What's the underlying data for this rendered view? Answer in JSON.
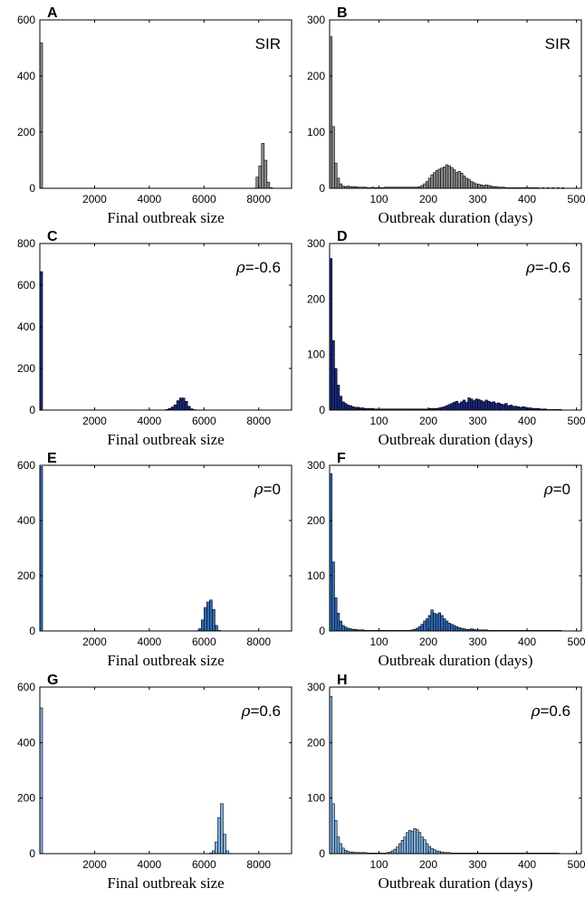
{
  "chart_data": [
    {
      "panel": "A",
      "type": "bar",
      "xlabel": "Final outbreak size",
      "ylabel": "",
      "annotation": "SIR",
      "color": "#8c8c8c",
      "xlim": [
        0,
        9200
      ],
      "ylim": [
        0,
        600
      ],
      "xticks": [
        2000,
        4000,
        6000,
        8000
      ],
      "yticks": [
        0,
        200,
        400,
        600
      ],
      "bin_width": 100,
      "bin_start": 0,
      "series": [
        {
          "values": [
            518,
            0,
            0,
            0,
            0,
            0,
            0,
            0,
            0,
            0,
            0,
            0,
            0,
            0,
            0,
            0,
            0,
            0,
            0,
            0,
            0,
            0,
            0,
            0,
            0,
            0,
            0,
            0,
            0,
            0,
            0,
            0,
            0,
            0,
            0,
            0,
            0,
            0,
            0,
            0,
            0,
            0,
            0,
            0,
            0,
            0,
            0,
            0,
            0,
            0,
            0,
            0,
            0,
            0,
            0,
            0,
            0,
            0,
            0,
            0,
            0,
            0,
            0,
            0,
            0,
            0,
            0,
            0,
            0,
            0,
            0,
            0,
            0,
            0,
            0,
            0,
            0,
            0,
            1,
            40,
            80,
            160,
            100,
            22,
            2
          ]
        }
      ]
    },
    {
      "panel": "B",
      "type": "bar",
      "xlabel": "Outbreak duration (days)",
      "ylabel": "",
      "annotation": "SIR",
      "color": "#8c8c8c",
      "xlim": [
        0,
        510
      ],
      "ylim": [
        0,
        300
      ],
      "xticks": [
        100,
        200,
        300,
        400,
        500
      ],
      "yticks": [
        0,
        100,
        200,
        300
      ],
      "bin_width": 5,
      "bin_start": 0,
      "series": [
        {
          "values": [
            270,
            110,
            45,
            18,
            8,
            4,
            3,
            4,
            3,
            3,
            3,
            2,
            2,
            2,
            2,
            1,
            1,
            2,
            1,
            1,
            1,
            1,
            2,
            2,
            2,
            2,
            2,
            2,
            2,
            2,
            2,
            2,
            2,
            2,
            2,
            2,
            3,
            5,
            8,
            12,
            18,
            24,
            28,
            32,
            34,
            36,
            38,
            42,
            40,
            37,
            33,
            28,
            30,
            27,
            22,
            18,
            16,
            12,
            10,
            8,
            7,
            6,
            5,
            6,
            5,
            4,
            3,
            3,
            2,
            2,
            2,
            1,
            1,
            1,
            1,
            1,
            1,
            1,
            1,
            1,
            1,
            1,
            1,
            1,
            1,
            0,
            1,
            0,
            1,
            0,
            1,
            0,
            1,
            0,
            1,
            0
          ]
        }
      ]
    },
    {
      "panel": "C",
      "type": "bar",
      "xlabel": "Final outbreak size",
      "ylabel": "",
      "annotation": "ρ=-0.6",
      "color": "#1b2a80",
      "xlim": [
        0,
        9200
      ],
      "ylim": [
        0,
        800
      ],
      "xticks": [
        2000,
        4000,
        6000,
        8000
      ],
      "yticks": [
        0,
        200,
        400,
        600,
        800
      ],
      "bin_width": 100,
      "bin_start": 0,
      "series": [
        {
          "values": [
            665,
            0,
            0,
            0,
            0,
            0,
            0,
            0,
            0,
            0,
            0,
            0,
            0,
            0,
            0,
            0,
            0,
            0,
            0,
            0,
            0,
            0,
            0,
            0,
            0,
            0,
            0,
            0,
            0,
            0,
            0,
            0,
            0,
            0,
            0,
            0,
            0,
            0,
            0,
            0,
            0,
            0,
            0,
            0,
            0,
            0,
            3,
            8,
            15,
            25,
            45,
            58,
            58,
            42,
            18,
            6,
            2
          ]
        }
      ]
    },
    {
      "panel": "D",
      "type": "bar",
      "xlabel": "Outbreak duration (days)",
      "ylabel": "",
      "annotation": "ρ=-0.6",
      "color": "#1b2a80",
      "xlim": [
        0,
        510
      ],
      "ylim": [
        0,
        300
      ],
      "xticks": [
        100,
        200,
        300,
        400,
        500
      ],
      "yticks": [
        0,
        100,
        200,
        300
      ],
      "bin_width": 5,
      "bin_start": 0,
      "series": [
        {
          "values": [
            273,
            125,
            75,
            45,
            25,
            15,
            12,
            9,
            8,
            6,
            5,
            5,
            4,
            4,
            3,
            3,
            3,
            3,
            2,
            2,
            2,
            2,
            2,
            2,
            2,
            2,
            2,
            2,
            2,
            2,
            2,
            2,
            2,
            2,
            2,
            2,
            2,
            2,
            2,
            2,
            3,
            3,
            3,
            3,
            4,
            5,
            6,
            8,
            10,
            12,
            14,
            16,
            12,
            15,
            18,
            14,
            22,
            20,
            17,
            20,
            19,
            17,
            15,
            18,
            16,
            14,
            15,
            12,
            13,
            11,
            10,
            12,
            8,
            9,
            7,
            7,
            6,
            5,
            6,
            5,
            4,
            4,
            3,
            3,
            3,
            2,
            2,
            2,
            1,
            1,
            1,
            1,
            1,
            1,
            0,
            0
          ]
        }
      ]
    },
    {
      "panel": "E",
      "type": "bar",
      "xlabel": "Final outbreak size",
      "ylabel": "",
      "annotation": "ρ=0",
      "color": "#2f6bb8",
      "xlim": [
        0,
        9200
      ],
      "ylim": [
        0,
        600
      ],
      "xticks": [
        2000,
        4000,
        6000,
        8000
      ],
      "yticks": [
        0,
        200,
        400,
        600
      ],
      "bin_width": 100,
      "bin_start": 0,
      "series": [
        {
          "values": [
            595,
            0,
            0,
            0,
            0,
            0,
            0,
            0,
            0,
            0,
            0,
            0,
            0,
            0,
            0,
            0,
            0,
            0,
            0,
            0,
            0,
            0,
            0,
            0,
            0,
            0,
            0,
            0,
            0,
            0,
            0,
            0,
            0,
            0,
            0,
            0,
            0,
            0,
            0,
            0,
            0,
            0,
            0,
            0,
            0,
            0,
            0,
            0,
            0,
            0,
            0,
            0,
            0,
            0,
            0,
            0,
            0,
            1,
            8,
            40,
            85,
            105,
            112,
            78,
            20,
            2
          ]
        }
      ]
    },
    {
      "panel": "F",
      "type": "bar",
      "xlabel": "Outbreak duration (days)",
      "ylabel": "",
      "annotation": "ρ=0",
      "color": "#2f6bb8",
      "xlim": [
        0,
        510
      ],
      "ylim": [
        0,
        300
      ],
      "xticks": [
        100,
        200,
        300,
        400,
        500
      ],
      "yticks": [
        0,
        100,
        200,
        300
      ],
      "bin_width": 5,
      "bin_start": 0,
      "series": [
        {
          "values": [
            285,
            125,
            60,
            32,
            18,
            10,
            7,
            5,
            4,
            3,
            3,
            2,
            2,
            2,
            1,
            1,
            1,
            1,
            1,
            1,
            1,
            1,
            1,
            1,
            1,
            1,
            1,
            1,
            1,
            1,
            1,
            1,
            1,
            2,
            3,
            5,
            8,
            12,
            18,
            22,
            28,
            38,
            32,
            30,
            33,
            28,
            22,
            18,
            14,
            12,
            10,
            8,
            6,
            5,
            4,
            3,
            3,
            4,
            3,
            2,
            2,
            2,
            2,
            2,
            1,
            1,
            1,
            1,
            1,
            1,
            1,
            1,
            1,
            1,
            1,
            1,
            1,
            1,
            1,
            1,
            1,
            1,
            1,
            1,
            1,
            1,
            1,
            1,
            1,
            1,
            1,
            1,
            1,
            1,
            0,
            0
          ]
        }
      ]
    },
    {
      "panel": "G",
      "type": "bar",
      "xlabel": "Final outbreak size",
      "ylabel": "",
      "annotation": "ρ=0.6",
      "color": "#7fb2e3",
      "xlim": [
        0,
        9200
      ],
      "ylim": [
        0,
        600
      ],
      "xticks": [
        2000,
        4000,
        6000,
        8000
      ],
      "yticks": [
        0,
        200,
        400,
        600
      ],
      "bin_width": 100,
      "bin_start": 0,
      "series": [
        {
          "values": [
            525,
            0,
            0,
            0,
            0,
            0,
            0,
            0,
            0,
            0,
            0,
            0,
            0,
            0,
            0,
            0,
            0,
            0,
            0,
            0,
            0,
            0,
            0,
            0,
            0,
            0,
            0,
            0,
            0,
            0,
            0,
            0,
            0,
            0,
            0,
            0,
            0,
            0,
            0,
            0,
            0,
            0,
            0,
            0,
            0,
            0,
            0,
            0,
            0,
            0,
            0,
            0,
            0,
            0,
            0,
            0,
            0,
            0,
            0,
            0,
            0,
            0,
            2,
            10,
            42,
            130,
            180,
            70,
            10,
            1
          ]
        }
      ]
    },
    {
      "panel": "H",
      "type": "bar",
      "xlabel": "Outbreak duration (days)",
      "ylabel": "",
      "annotation": "ρ=0.6",
      "color": "#7fb2e3",
      "xlim": [
        0,
        510
      ],
      "ylim": [
        0,
        300
      ],
      "xticks": [
        100,
        200,
        300,
        400,
        500
      ],
      "yticks": [
        0,
        100,
        200,
        300
      ],
      "bin_width": 5,
      "bin_start": 0,
      "series": [
        {
          "values": [
            283,
            90,
            60,
            30,
            18,
            10,
            6,
            4,
            3,
            3,
            2,
            2,
            2,
            2,
            2,
            1,
            1,
            1,
            1,
            1,
            1,
            1,
            1,
            2,
            3,
            5,
            8,
            12,
            18,
            24,
            30,
            38,
            42,
            40,
            45,
            43,
            38,
            30,
            25,
            18,
            13,
            9,
            7,
            5,
            4,
            3,
            2,
            2,
            2,
            1,
            1,
            1,
            1,
            1,
            1,
            1,
            1,
            1,
            1,
            1,
            1,
            1,
            1,
            1,
            1,
            1,
            1,
            1,
            1,
            1,
            1,
            1,
            1,
            1,
            1,
            1,
            1,
            1,
            1,
            1,
            1,
            1,
            1,
            1,
            1,
            1,
            1,
            1,
            1,
            1,
            1,
            1,
            1,
            0,
            0,
            0
          ]
        }
      ]
    }
  ]
}
